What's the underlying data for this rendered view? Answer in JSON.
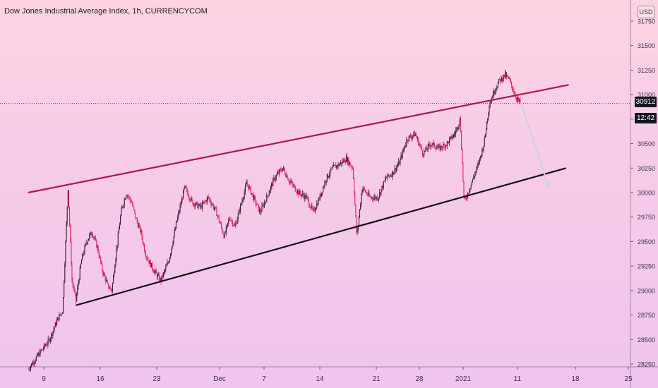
{
  "header": {
    "title": "Dow Jones Industrial Average Index, 1h, CURRENCYCOM"
  },
  "currency_button": {
    "label": "USD"
  },
  "price_tag": {
    "value": "30912"
  },
  "time_tag": {
    "value": "12:42"
  },
  "chart_data": {
    "type": "candlestick",
    "title": "Dow Jones Industrial Average Index, 1h, CURRENCYCOM",
    "yticks": [
      28250,
      28500,
      28750,
      29000,
      29250,
      29500,
      29750,
      30000,
      30250,
      30500,
      30750,
      31000,
      31250,
      31500,
      31750
    ],
    "xticks": [
      "9",
      "16",
      "23",
      "Dec",
      "7",
      "14",
      "21",
      "28",
      "2021",
      "11",
      "18",
      "25"
    ],
    "ylim": [
      28200,
      31900
    ],
    "last_price": 30912,
    "price_path": [
      [
        0,
        28200
      ],
      [
        8,
        28350
      ],
      [
        16,
        28500
      ],
      [
        22,
        28700
      ],
      [
        26,
        28800
      ],
      [
        30,
        30050
      ],
      [
        33,
        29100
      ],
      [
        36,
        28900
      ],
      [
        40,
        29300
      ],
      [
        44,
        29500
      ],
      [
        48,
        29600
      ],
      [
        52,
        29450
      ],
      [
        56,
        29200
      ],
      [
        60,
        29050
      ],
      [
        63,
        29000
      ],
      [
        66,
        29350
      ],
      [
        70,
        29800
      ],
      [
        74,
        30000
      ],
      [
        78,
        29900
      ],
      [
        82,
        29700
      ],
      [
        85,
        29600
      ],
      [
        88,
        29400
      ],
      [
        91,
        29300
      ],
      [
        95,
        29200
      ],
      [
        100,
        29100
      ],
      [
        106,
        29300
      ],
      [
        112,
        29700
      ],
      [
        118,
        30050
      ],
      [
        124,
        29900
      ],
      [
        130,
        29850
      ],
      [
        136,
        29950
      ],
      [
        142,
        29800
      ],
      [
        148,
        29550
      ],
      [
        152,
        29750
      ],
      [
        156,
        29650
      ],
      [
        160,
        29850
      ],
      [
        165,
        30100
      ],
      [
        170,
        29950
      ],
      [
        175,
        29800
      ],
      [
        180,
        29950
      ],
      [
        186,
        30150
      ],
      [
        192,
        30250
      ],
      [
        198,
        30100
      ],
      [
        204,
        30000
      ],
      [
        210,
        29950
      ],
      [
        215,
        29800
      ],
      [
        220,
        29950
      ],
      [
        225,
        30150
      ],
      [
        230,
        30250
      ],
      [
        236,
        30300
      ],
      [
        240,
        30350
      ],
      [
        245,
        30250
      ],
      [
        248,
        29550
      ],
      [
        252,
        30050
      ],
      [
        258,
        29950
      ],
      [
        264,
        29950
      ],
      [
        270,
        30150
      ],
      [
        275,
        30200
      ],
      [
        280,
        30300
      ],
      [
        286,
        30550
      ],
      [
        292,
        30600
      ],
      [
        298,
        30400
      ],
      [
        304,
        30500
      ],
      [
        310,
        30450
      ],
      [
        316,
        30500
      ],
      [
        322,
        30600
      ],
      [
        326,
        30750
      ],
      [
        329,
        29900
      ],
      [
        332,
        30000
      ],
      [
        336,
        30150
      ],
      [
        340,
        30300
      ],
      [
        344,
        30500
      ],
      [
        348,
        30900
      ],
      [
        352,
        31050
      ],
      [
        356,
        31150
      ],
      [
        360,
        31200
      ],
      [
        363,
        31150
      ],
      [
        366,
        31050
      ],
      [
        369,
        30950
      ],
      [
        372,
        30912
      ]
    ],
    "resistance_line": {
      "from": [
        0,
        30000
      ],
      "to": [
        408,
        31100
      ]
    },
    "support_line": {
      "from": [
        36,
        28850
      ],
      "to": [
        406,
        30250
      ]
    },
    "projection_arrow": {
      "from": [
        372,
        30912
      ],
      "to": [
        393,
        30050
      ]
    },
    "colors": {
      "resistance": "#b0174a",
      "support": "#111111",
      "candles_dark": "#3a1b3c",
      "candles_red": "#e0265c",
      "arrow": "#c9d4e6"
    }
  }
}
